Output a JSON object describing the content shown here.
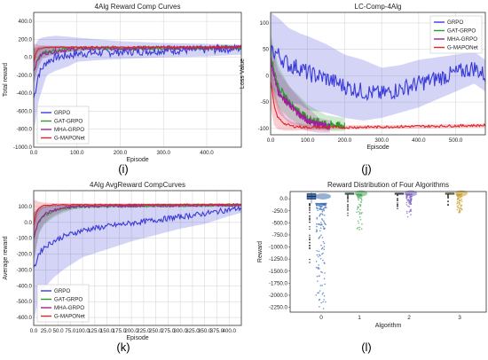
{
  "figure": {
    "panel_letters": [
      "(i)",
      "(j)",
      "(k)",
      "(l)"
    ]
  },
  "colors": {
    "GRPO": "#3a3ad8",
    "GAT-GRPO": "#2e9a2e",
    "MHA-GRPO": "#a0209a",
    "G-MAPONet": "#e0222a",
    "ALG0": "#3f6fb5",
    "ALG1": "#4aa85a",
    "ALG2": "#7b5fbf",
    "ALG3": "#caa030",
    "grid": "#d9d9d9"
  },
  "chart_data": [
    {
      "type": "line",
      "title": "4Alg Reward Comp Curves",
      "xlabel": "Episode",
      "ylabel": "Total reward",
      "xlim": [
        0,
        480
      ],
      "ylim": [
        -1000,
        500
      ],
      "xticks": [
        0,
        100,
        200,
        300,
        400
      ],
      "xtick_labels": [
        "0.0",
        "100.0",
        "200.0",
        "300.0",
        "400.0"
      ],
      "yticks": [
        -1000,
        -800,
        -600,
        -400,
        -200,
        0,
        200,
        400
      ],
      "ytick_labels": [
        "-1000.0",
        "-800.0",
        "-600.0",
        "-400.0",
        "-200.0",
        "0.0",
        "200.0",
        "400.0"
      ],
      "grid": true,
      "legend": "bottom-left",
      "series": [
        {
          "name": "GRPO",
          "x": [
            0,
            5,
            10,
            20,
            30,
            50,
            80,
            100,
            150,
            200,
            300,
            400,
            480
          ],
          "y": [
            -450,
            -350,
            -200,
            -120,
            -50,
            0,
            20,
            40,
            50,
            60,
            75,
            85,
            100
          ],
          "band": [
            [
              -800,
              100
            ],
            [
              -700,
              150
            ],
            [
              -500,
              200
            ],
            [
              -350,
              220
            ],
            [
              -200,
              230
            ],
            [
              -150,
              240
            ],
            [
              -100,
              230
            ],
            [
              -50,
              220
            ],
            [
              -30,
              200
            ],
            [
              -20,
              180
            ],
            [
              0,
              160
            ],
            [
              10,
              150
            ],
            [
              30,
              140
            ]
          ]
        },
        {
          "name": "GAT-GRPO",
          "x": [
            0,
            10,
            20,
            40,
            60,
            80,
            100,
            120,
            480
          ],
          "y": [
            -150,
            0,
            50,
            70,
            80,
            90,
            95,
            100,
            110
          ],
          "band": [
            [
              -300,
              100
            ],
            [
              -100,
              120
            ],
            [
              0,
              130
            ],
            [
              30,
              130
            ],
            [
              50,
              130
            ],
            [
              60,
              125
            ],
            [
              70,
              120
            ],
            [
              80,
              120
            ],
            [
              95,
              125
            ]
          ]
        },
        {
          "name": "MHA-GRPO",
          "x": [
            0,
            10,
            20,
            40,
            60,
            80,
            100,
            120,
            480
          ],
          "y": [
            -150,
            -20,
            40,
            60,
            75,
            85,
            92,
            100,
            110
          ],
          "band": [
            [
              -300,
              100
            ],
            [
              -120,
              110
            ],
            [
              -20,
              120
            ],
            [
              20,
              125
            ],
            [
              45,
              125
            ],
            [
              60,
              120
            ],
            [
              70,
              118
            ],
            [
              80,
              118
            ],
            [
              95,
              125
            ]
          ]
        },
        {
          "name": "G-MAPONet",
          "x": [
            0,
            5,
            10,
            20,
            40,
            60,
            100,
            200,
            480
          ],
          "y": [
            -50,
            50,
            90,
            105,
            110,
            112,
            112,
            112,
            112
          ],
          "band": [
            [
              -150,
              150
            ],
            [
              0,
              150
            ],
            [
              60,
              140
            ],
            [
              90,
              130
            ],
            [
              100,
              125
            ],
            [
              102,
              122
            ],
            [
              105,
              120
            ],
            [
              106,
              118
            ],
            [
              106,
              118
            ]
          ]
        }
      ]
    },
    {
      "type": "line",
      "title": "LC-Comp-4Alg",
      "xlabel": "Episode",
      "ylabel": "Loss Value",
      "xlim": [
        0,
        580
      ],
      "ylim": [
        -112,
        120
      ],
      "xticks": [
        0,
        100,
        200,
        300,
        400,
        500
      ],
      "xtick_labels": [
        "0.0",
        "100.0",
        "200.0",
        "300.0",
        "400.0",
        "500.0"
      ],
      "yticks": [
        -100,
        -50,
        0,
        50,
        100
      ],
      "ytick_labels": [
        "-100",
        "-50",
        "0",
        "50",
        "100"
      ],
      "grid": true,
      "legend": "top-right",
      "series": [
        {
          "name": "GRPO",
          "x": [
            0,
            20,
            50,
            80,
            100,
            150,
            200,
            250,
            300,
            350,
            400,
            450,
            500,
            550,
            580
          ],
          "y": [
            50,
            40,
            20,
            15,
            5,
            -5,
            -20,
            -30,
            -35,
            -25,
            -15,
            -5,
            5,
            15,
            0
          ],
          "band": [
            [
              -20,
              120
            ],
            [
              -40,
              110
            ],
            [
              -50,
              90
            ],
            [
              -55,
              80
            ],
            [
              -65,
              75
            ],
            [
              -70,
              60
            ],
            [
              -80,
              40
            ],
            [
              -85,
              30
            ],
            [
              -80,
              15
            ],
            [
              -70,
              20
            ],
            [
              -60,
              30
            ],
            [
              -45,
              35
            ],
            [
              -30,
              40
            ],
            [
              -15,
              45
            ],
            [
              -30,
              30
            ]
          ]
        },
        {
          "name": "GAT-GRPO",
          "x": [
            0,
            20,
            50,
            80,
            100,
            150,
            200
          ],
          "y": [
            40,
            -20,
            -50,
            -70,
            -80,
            -92,
            -95
          ],
          "band": [
            [
              -20,
              80
            ],
            [
              -60,
              20
            ],
            [
              -80,
              -20
            ],
            [
              -95,
              -40
            ],
            [
              -100,
              -55
            ],
            [
              -105,
              -75
            ],
            [
              -105,
              -80
            ]
          ]
        },
        {
          "name": "MHA-GRPO",
          "x": [
            0,
            20,
            50,
            80,
            100,
            130,
            160
          ],
          "y": [
            30,
            -30,
            -55,
            -75,
            -85,
            -93,
            -97
          ],
          "band": [
            [
              -20,
              70
            ],
            [
              -70,
              10
            ],
            [
              -90,
              -20
            ],
            [
              -100,
              -45
            ],
            [
              -105,
              -60
            ],
            [
              -108,
              -80
            ],
            [
              -108,
              -85
            ]
          ]
        },
        {
          "name": "G-MAPONet",
          "x": [
            0,
            10,
            20,
            40,
            60,
            100,
            200,
            300,
            400,
            500,
            580
          ],
          "y": [
            -10,
            -60,
            -80,
            -92,
            -96,
            -98,
            -98,
            -97,
            -96,
            -95,
            -94
          ],
          "band": [
            [
              -60,
              40
            ],
            [
              -95,
              -20
            ],
            [
              -102,
              -55
            ],
            [
              -104,
              -80
            ],
            [
              -104,
              -88
            ],
            [
              -103,
              -93
            ],
            [
              -102,
              -94
            ],
            [
              -101,
              -94
            ],
            [
              -100,
              -93
            ],
            [
              -99,
              -92
            ],
            [
              -98,
              -91
            ]
          ]
        }
      ]
    },
    {
      "type": "line",
      "title": "4Alg AvgReward CompCurves",
      "xlabel": "Episode",
      "ylabel": "Average reward",
      "xlim": [
        0,
        425
      ],
      "ylim": [
        -650,
        200
      ],
      "xticks": [
        0,
        25,
        50,
        75,
        100,
        125,
        150,
        175,
        200,
        225,
        250,
        275,
        300,
        325,
        350,
        375,
        400
      ],
      "xtick_labels": [
        "0.0",
        "25.0",
        "50.0",
        "75.0",
        "100.0",
        "125.0",
        "150.0",
        "175.0",
        "200.0",
        "225.0",
        "250.0",
        "275.0",
        "300.0",
        "325.0",
        "350.0",
        "375.0",
        "400.0"
      ],
      "yticks": [
        -600,
        -500,
        -400,
        -300,
        -200,
        -100,
        0,
        100
      ],
      "ytick_labels": [
        "-600.0",
        "-500.0",
        "-400.0",
        "-300.0",
        "-200.0",
        "-100.0",
        "0.0",
        "100.0"
      ],
      "grid": true,
      "legend": "bottom-left",
      "series": [
        {
          "name": "GRPO",
          "x": [
            0,
            5,
            10,
            20,
            40,
            60,
            80,
            100,
            150,
            200,
            250,
            300,
            350,
            400,
            425
          ],
          "y": [
            -300,
            -250,
            -200,
            -160,
            -120,
            -90,
            -70,
            -50,
            -25,
            -5,
            15,
            35,
            55,
            80,
            90
          ],
          "band": [
            [
              -620,
              60
            ],
            [
              -550,
              80
            ],
            [
              -480,
              90
            ],
            [
              -420,
              100
            ],
            [
              -350,
              110
            ],
            [
              -300,
              110
            ],
            [
              -260,
              110
            ],
            [
              -220,
              110
            ],
            [
              -170,
              110
            ],
            [
              -120,
              110
            ],
            [
              -80,
              110
            ],
            [
              -40,
              110
            ],
            [
              -10,
              110
            ],
            [
              40,
              115
            ],
            [
              60,
              118
            ]
          ]
        },
        {
          "name": "GAT-GRPO",
          "x": [
            0,
            10,
            20,
            40,
            60,
            80,
            100,
            425
          ],
          "y": [
            -100,
            0,
            40,
            70,
            85,
            95,
            100,
            110
          ],
          "band": [
            [
              -250,
              60
            ],
            [
              -80,
              90
            ],
            [
              -20,
              100
            ],
            [
              30,
              110
            ],
            [
              60,
              115
            ],
            [
              80,
              115
            ],
            [
              90,
              115
            ],
            [
              100,
              118
            ]
          ]
        },
        {
          "name": "MHA-GRPO",
          "x": [
            0,
            10,
            20,
            40,
            60,
            80,
            100,
            425
          ],
          "y": [
            -100,
            10,
            50,
            75,
            90,
            98,
            102,
            110
          ],
          "band": [
            [
              -250,
              60
            ],
            [
              -70,
              95
            ],
            [
              -10,
              105
            ],
            [
              40,
              110
            ],
            [
              70,
              115
            ],
            [
              85,
              115
            ],
            [
              95,
              115
            ],
            [
              100,
              118
            ]
          ]
        },
        {
          "name": "G-MAPONet",
          "x": [
            0,
            5,
            10,
            20,
            40,
            100,
            425
          ],
          "y": [
            -20,
            60,
            90,
            105,
            110,
            112,
            112
          ],
          "band": [
            [
              -120,
              140
            ],
            [
              0,
              140
            ],
            [
              60,
              130
            ],
            [
              90,
              125
            ],
            [
              100,
              122
            ],
            [
              104,
              120
            ],
            [
              106,
              118
            ]
          ]
        }
      ]
    },
    {
      "type": "box",
      "title": "Reward Distribution of Four Algorithms",
      "xlabel": "Algorithm",
      "ylabel": "Reward",
      "categories": [
        "0",
        "1",
        "2",
        "3"
      ],
      "ylim": [
        -2350,
        150
      ],
      "yticks": [
        0,
        -250,
        -500,
        -750,
        -1000,
        -1250,
        -1500,
        -1750,
        -2000,
        -2250
      ],
      "ytick_labels": [
        "0.0",
        "-250.0",
        "-500.0",
        "-750.0",
        "-1000.0",
        "-1250.0",
        "-1500.0",
        "-1750.0",
        "-2000.0",
        "-2250.0"
      ],
      "grid": false,
      "boxes": [
        {
          "category": "0",
          "q1": -10,
          "median": 50,
          "q3": 110,
          "whisker_low": -100,
          "whisker_high": 130,
          "strip_min": -2280
        },
        {
          "category": "1",
          "q1": 100,
          "median": 112,
          "q3": 118,
          "whisker_low": 90,
          "whisker_high": 125,
          "strip_min": -650
        },
        {
          "category": "2",
          "q1": 102,
          "median": 112,
          "q3": 118,
          "whisker_low": 95,
          "whisker_high": 125,
          "strip_min": -420
        },
        {
          "category": "3",
          "q1": 104,
          "median": 113,
          "q3": 119,
          "whisker_low": 96,
          "whisker_high": 126,
          "strip_min": -290
        }
      ]
    }
  ]
}
